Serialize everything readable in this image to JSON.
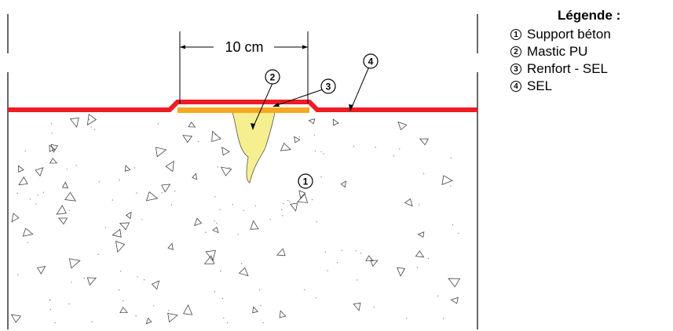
{
  "dimension": {
    "label": "10 cm"
  },
  "callouts": [
    "1",
    "2",
    "3",
    "4"
  ],
  "legend": {
    "title": "Légende :",
    "items": [
      {
        "number": "1",
        "label": "Support béton"
      },
      {
        "number": "2",
        "label": "Mastic PU"
      },
      {
        "number": "3",
        "label": "Renfort - SEL"
      },
      {
        "number": "4",
        "label": "SEL"
      }
    ]
  },
  "colors": {
    "membrane": "#ee1c24",
    "reinforcement": "#f7a823",
    "mastic": "#f5ef8f",
    "concrete": "#ffffff",
    "line": "#000000"
  }
}
